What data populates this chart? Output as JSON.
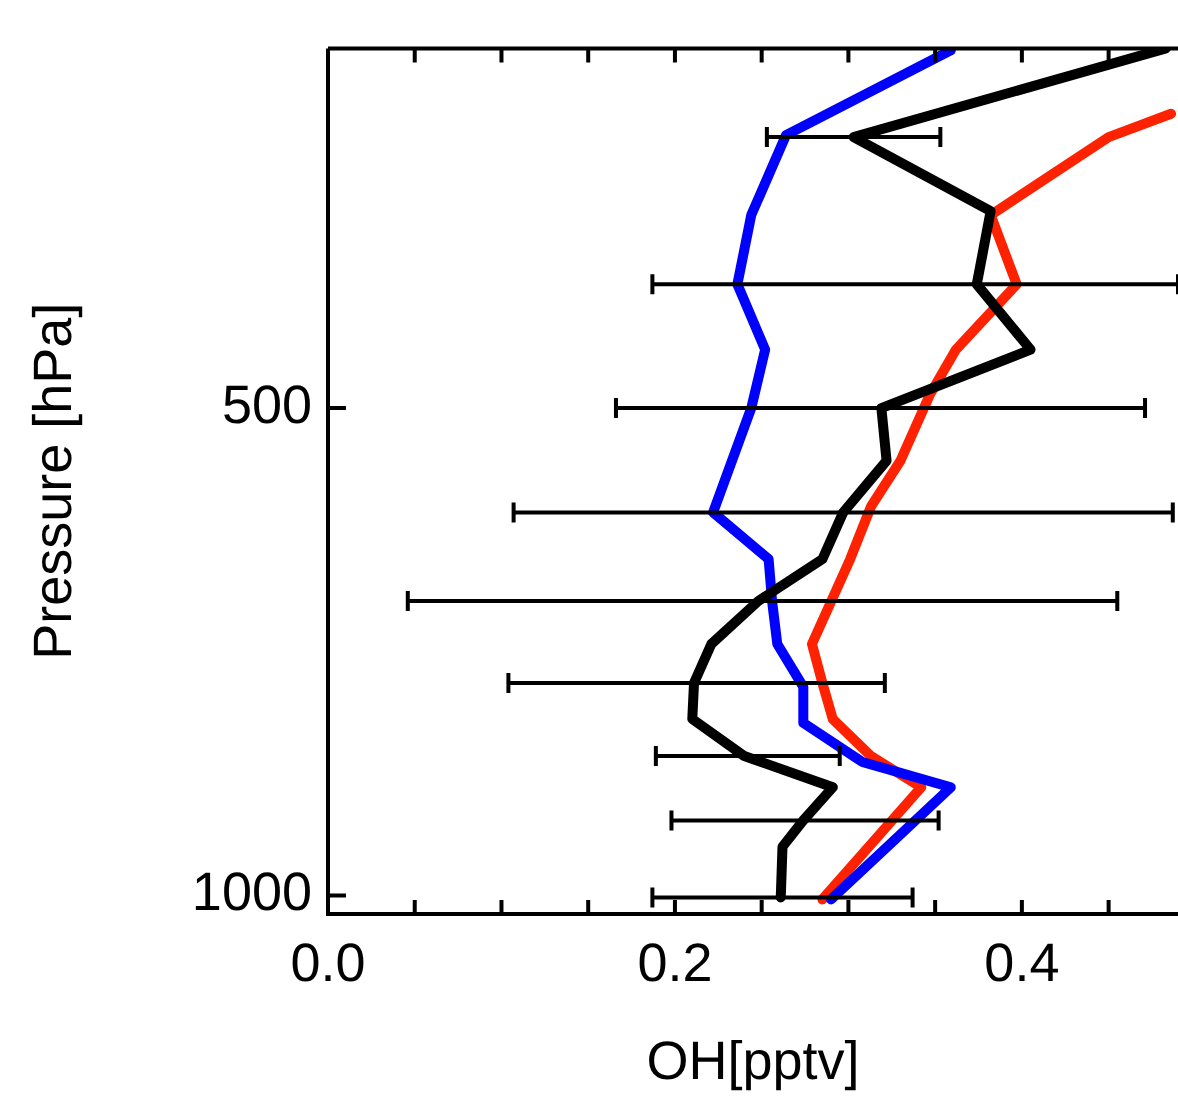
{
  "chart_data": {
    "type": "line",
    "xlabel": "OH[pptv]",
    "ylabel": "Pressure [hPa]",
    "xlim": [
      0,
      0.49
    ],
    "ylim": [
      1019,
      131
    ],
    "xticks": [
      {
        "value": 0,
        "label": "0.0"
      },
      {
        "value": 0.05,
        "label": null
      },
      {
        "value": 0.1,
        "label": null
      },
      {
        "value": 0.15,
        "label": null
      },
      {
        "value": 0.2,
        "label": "0.2"
      },
      {
        "value": 0.25,
        "label": null
      },
      {
        "value": 0.3,
        "label": null
      },
      {
        "value": 0.35,
        "label": null
      },
      {
        "value": 0.4,
        "label": "0.4"
      },
      {
        "value": 0.45,
        "label": null
      }
    ],
    "yticks": [
      500,
      1000
    ],
    "grid": false,
    "legend": false,
    "marker": "none",
    "line_style": "solid",
    "series": [
      {
        "color": "#000000",
        "x": [
          0.483,
          0.303,
          0.382,
          0.374,
          0.405,
          0.319,
          0.322,
          0.297,
          0.285,
          0.248,
          0.221,
          0.211,
          0.21,
          0.24,
          0.291,
          0.274,
          0.262,
          0.261
        ],
        "values": [
          131,
          222,
          298,
          373,
          440,
          500,
          554,
          607,
          655,
          698,
          742,
          782,
          819,
          857,
          889,
          923,
          950,
          1002
        ],
        "xerrors": [
          null,
          [
            0.253,
            0.353
          ],
          null,
          [
            0.187,
            0.49
          ],
          null,
          [
            0.166,
            0.471
          ],
          null,
          [
            0.107,
            0.487
          ],
          null,
          [
            0.046,
            0.455
          ],
          null,
          [
            0.104,
            0.321
          ],
          null,
          [
            0.189,
            0.295
          ],
          null,
          [
            0.198,
            0.352
          ],
          null,
          [
            0.187,
            0.337
          ]
        ]
      },
      {
        "color": "#0000ff",
        "x": [
          0.359,
          0.264,
          0.244,
          0.236,
          0.252,
          0.244,
          0.222,
          0.254,
          0.256,
          0.259,
          0.274,
          0.274,
          0.308,
          0.359,
          0.29
        ],
        "values": [
          133,
          220,
          302,
          373,
          440,
          500,
          607,
          655,
          698,
          742,
          786,
          823,
          863,
          889,
          1004
        ]
      },
      {
        "color": "#ff2200",
        "x": [
          0.486,
          0.45,
          0.382,
          0.397,
          0.362,
          0.347,
          0.33,
          0.313,
          0.301,
          0.279,
          0.285,
          0.291,
          0.313,
          0.342,
          0.285
        ],
        "values": [
          198,
          222,
          302,
          373,
          440,
          486,
          554,
          601,
          655,
          742,
          782,
          819,
          857,
          889,
          1004
        ]
      }
    ]
  }
}
